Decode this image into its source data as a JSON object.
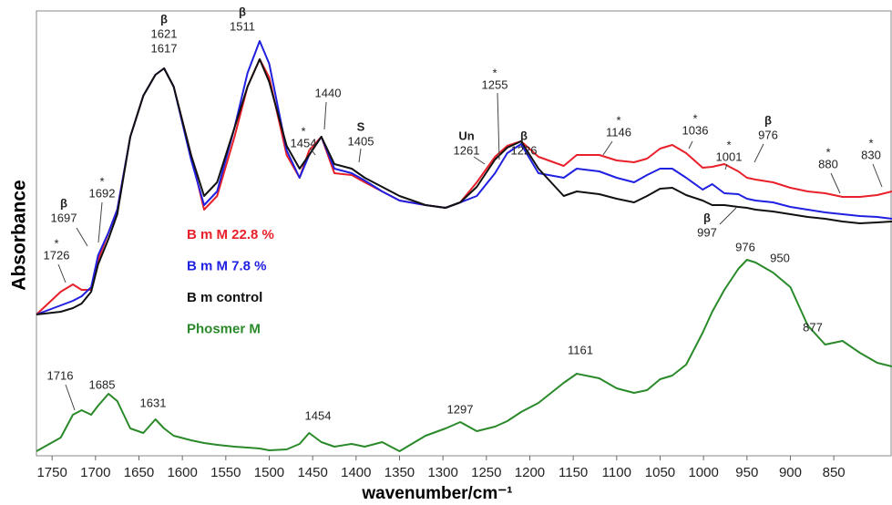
{
  "chart_data": {
    "type": "line",
    "xlabel": "wavenumber/cm⁻¹",
    "ylabel": "Absorbance",
    "xlim": [
      1768,
      783
    ],
    "xticks": [
      1750,
      1700,
      1650,
      1600,
      1550,
      1500,
      1450,
      1400,
      1350,
      1300,
      1250,
      1200,
      1150,
      1100,
      1050,
      1000,
      950,
      900,
      850
    ],
    "ylim": [
      0,
      488
    ],
    "x": [
      1768,
      1740,
      1726,
      1716,
      1705,
      1697,
      1685,
      1675,
      1660,
      1645,
      1631,
      1621,
      1610,
      1590,
      1575,
      1560,
      1540,
      1525,
      1511,
      1500,
      1480,
      1465,
      1454,
      1440,
      1425,
      1405,
      1390,
      1370,
      1350,
      1320,
      1297,
      1280,
      1261,
      1240,
      1226,
      1210,
      1190,
      1161,
      1146,
      1120,
      1100,
      1080,
      1065,
      1050,
      1036,
      1020,
      1001,
      990,
      976,
      960,
      950,
      940,
      920,
      900,
      880,
      860,
      840,
      820,
      800,
      783
    ],
    "series": [
      {
        "name": "B m M 22.8 %",
        "color": "#e8202a",
        "values": [
          155,
          180,
          188,
          182,
          182,
          215,
          245,
          270,
          350,
          395,
          418,
          425,
          405,
          330,
          270,
          285,
          350,
          405,
          435,
          415,
          330,
          305,
          335,
          350,
          310,
          308,
          300,
          290,
          280,
          275,
          272,
          278,
          300,
          328,
          340,
          345,
          328,
          318,
          330,
          330,
          324,
          322,
          326,
          337,
          341,
          332,
          316,
          317,
          320,
          312,
          305,
          303,
          300,
          294,
          290,
          288,
          284,
          284,
          286,
          290
        ]
      },
      {
        "name": "B m M 7.8 %",
        "color": "#2020e0",
        "values": [
          155,
          165,
          170,
          175,
          185,
          220,
          245,
          270,
          350,
          395,
          418,
          425,
          405,
          325,
          275,
          290,
          360,
          420,
          455,
          430,
          335,
          305,
          330,
          350,
          315,
          310,
          302,
          290,
          280,
          275,
          272,
          278,
          285,
          310,
          332,
          342,
          310,
          305,
          315,
          312,
          305,
          300,
          308,
          315,
          315,
          305,
          292,
          298,
          288,
          287,
          282,
          280,
          278,
          273,
          270,
          267,
          265,
          263,
          262,
          260
        ]
      },
      {
        "name": "B m control",
        "color": "#111111",
        "values": [
          155,
          158,
          162,
          167,
          180,
          210,
          238,
          265,
          350,
          395,
          418,
          425,
          405,
          330,
          285,
          300,
          360,
          405,
          435,
          410,
          340,
          315,
          330,
          350,
          320,
          315,
          305,
          295,
          285,
          275,
          272,
          278,
          295,
          325,
          338,
          345,
          315,
          285,
          290,
          287,
          282,
          278,
          285,
          293,
          294,
          286,
          280,
          275,
          275,
          273,
          272,
          270,
          268,
          265,
          262,
          260,
          257,
          255,
          256,
          257
        ]
      },
      {
        "name": "Phosmer M",
        "color": "#2a8a2a",
        "values": [
          5,
          20,
          45,
          50,
          45,
          55,
          68,
          60,
          30,
          25,
          40,
          30,
          22,
          17,
          14,
          12,
          10,
          9,
          8,
          6,
          7,
          13,
          25,
          15,
          10,
          13,
          10,
          15,
          5,
          22,
          30,
          37,
          27,
          32,
          38,
          48,
          58,
          80,
          90,
          85,
          74,
          69,
          72,
          84,
          88,
          100,
          135,
          158,
          182,
          205,
          215,
          212,
          201,
          185,
          143,
          122,
          126,
          113,
          102,
          98
        ]
      }
    ],
    "annotations": [
      [
        "β",
        "1621",
        "1617"
      ],
      [
        "β",
        "1511"
      ],
      [
        "*",
        "1454"
      ],
      [
        "1440"
      ],
      [
        "S",
        "1405"
      ],
      [
        "Un",
        "1261"
      ],
      [
        "*",
        "1255"
      ],
      [
        "β",
        "1226"
      ],
      [
        "*",
        "1146"
      ],
      [
        "*",
        "1036"
      ],
      [
        "*",
        "1001"
      ],
      [
        "β",
        "976"
      ],
      [
        "*",
        "880"
      ],
      [
        "*",
        "830"
      ],
      [
        "β",
        "997"
      ],
      [
        "*",
        "1726"
      ],
      [
        "β",
        "1697"
      ],
      [
        "*",
        "1692"
      ],
      [
        "1716"
      ],
      [
        "1685"
      ],
      [
        "1631"
      ],
      [
        "1454"
      ],
      [
        "1297"
      ],
      [
        "1161"
      ],
      [
        "976"
      ],
      [
        "950"
      ],
      [
        "877"
      ]
    ]
  }
}
